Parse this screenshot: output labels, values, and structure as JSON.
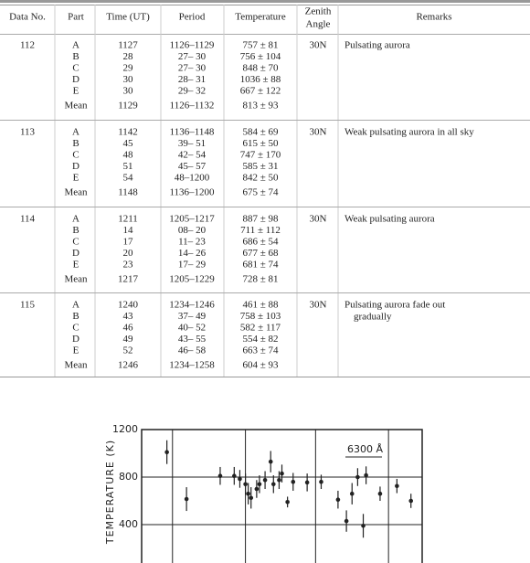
{
  "table": {
    "headers": [
      "Data No.",
      "Part",
      "Time (UT)",
      "Period",
      "Temperature",
      [
        "Zenith",
        "Angle"
      ],
      "Remarks"
    ],
    "groups": [
      {
        "data_no": "112",
        "zenith": "30N",
        "remarks": [
          "Pulsating aurora"
        ],
        "rows": [
          [
            "A",
            "1127",
            "1126–1129",
            "757 ± 81"
          ],
          [
            "B",
            "28",
            "27– 30",
            "756 ± 104"
          ],
          [
            "C",
            "29",
            "27– 30",
            "848 ± 70"
          ],
          [
            "D",
            "30",
            "28– 31",
            "1036 ± 88"
          ],
          [
            "E",
            "30",
            "29– 32",
            "667 ± 122"
          ],
          [
            "Mean",
            "1129",
            "1126–1132",
            "813 ± 93"
          ]
        ]
      },
      {
        "data_no": "113",
        "zenith": "30N",
        "remarks": [
          "Weak pulsating aurora in all sky"
        ],
        "rows": [
          [
            "A",
            "1142",
            "1136–1148",
            "584 ± 69"
          ],
          [
            "B",
            "45",
            "39– 51",
            "615 ± 50"
          ],
          [
            "C",
            "48",
            "42– 54",
            "747 ± 170"
          ],
          [
            "D",
            "51",
            "45– 57",
            "585 ± 31"
          ],
          [
            "E",
            "54",
            "48–1200",
            "842 ± 50"
          ],
          [
            "Mean",
            "1148",
            "1136–1200",
            "675 ± 74"
          ]
        ]
      },
      {
        "data_no": "114",
        "zenith": "30N",
        "remarks": [
          "Weak pulsating aurora"
        ],
        "rows": [
          [
            "A",
            "1211",
            "1205–1217",
            "887 ± 98"
          ],
          [
            "B",
            "14",
            "08– 20",
            "711 ± 112"
          ],
          [
            "C",
            "17",
            "11– 23",
            "686 ± 54"
          ],
          [
            "D",
            "20",
            "14– 26",
            "677 ± 68"
          ],
          [
            "E",
            "23",
            "17– 29",
            "681 ± 74"
          ],
          [
            "Mean",
            "1217",
            "1205–1229",
            "728 ± 81"
          ]
        ]
      },
      {
        "data_no": "115",
        "zenith": "30N",
        "remarks": [
          "Pulsating aurora fade out",
          "gradually"
        ],
        "rows": [
          [
            "A",
            "1240",
            "1234–1246",
            "461 ± 88"
          ],
          [
            "B",
            "43",
            "37– 49",
            "758 ± 103"
          ],
          [
            "C",
            "46",
            "40– 52",
            "582 ± 117"
          ],
          [
            "D",
            "49",
            "43– 55",
            "554 ± 82"
          ],
          [
            "E",
            "52",
            "46– 58",
            "663 ± 74"
          ],
          [
            "Mean",
            "1246",
            "1234–1258",
            "604 ± 93"
          ]
        ]
      }
    ]
  },
  "chart_data": {
    "type": "errorbar",
    "y_label": "TEMPERATURE (K)",
    "annotation": "6300 Å",
    "xlim": [
      0,
      100
    ],
    "xticks": [
      11,
      37,
      62,
      88
    ],
    "ylim": [
      0,
      1200
    ],
    "yticks": [
      400,
      800,
      1200
    ],
    "x": [
      9,
      16,
      28,
      33,
      35,
      37,
      38,
      39,
      41,
      42,
      44,
      46,
      47,
      49,
      50,
      52,
      54,
      59,
      64,
      70,
      73,
      75,
      77,
      79,
      80,
      85,
      91,
      96
    ],
    "values": [
      1010,
      615,
      810,
      810,
      785,
      740,
      660,
      625,
      700,
      740,
      775,
      930,
      740,
      775,
      830,
      590,
      760,
      755,
      760,
      610,
      430,
      660,
      800,
      390,
      815,
      660,
      725,
      600
    ],
    "errors": [
      100,
      100,
      75,
      75,
      75,
      90,
      90,
      90,
      75,
      75,
      75,
      90,
      75,
      75,
      75,
      45,
      75,
      75,
      60,
      75,
      90,
      90,
      75,
      100,
      75,
      60,
      60,
      60
    ],
    "color": "#222"
  }
}
